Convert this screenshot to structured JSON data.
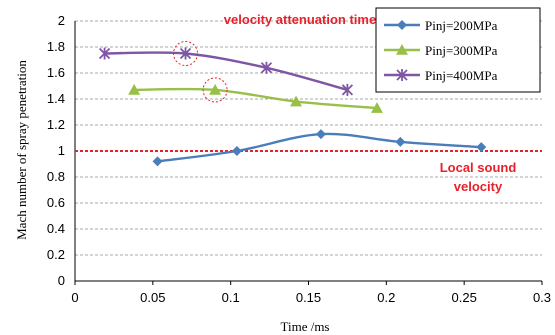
{
  "chart_data": {
    "type": "line",
    "xlabel": "Time /ms",
    "ylabel": "Mach number of spray penetration",
    "xlim": [
      0,
      0.3
    ],
    "ylim": [
      0,
      2
    ],
    "x_ticks": [
      "0",
      "0.05",
      "0.1",
      "0.15",
      "0.2",
      "0.25",
      "0.3"
    ],
    "y_ticks": [
      "0",
      "0.2",
      "0.4",
      "0.6",
      "0.8",
      "1",
      "1.2",
      "1.4",
      "1.6",
      "1.8",
      "2"
    ],
    "grid": "horizontal dashed",
    "legend_position": "top-right",
    "series": [
      {
        "name": "Pinj=200MPa",
        "color": "#4a7ebb",
        "marker": "diamond",
        "points": [
          [
            0.053,
            0.92
          ],
          [
            0.104,
            1.0
          ],
          [
            0.158,
            1.13
          ],
          [
            0.209,
            1.07
          ],
          [
            0.261,
            1.03
          ]
        ]
      },
      {
        "name": "Pinj=300MPa",
        "color": "#98c049",
        "marker": "triangle",
        "points": [
          [
            0.038,
            1.47
          ],
          [
            0.09,
            1.47
          ],
          [
            0.142,
            1.38
          ],
          [
            0.194,
            1.33
          ]
        ]
      },
      {
        "name": "Pinj=400MPa",
        "color": "#7e56a4",
        "marker": "star",
        "points": [
          [
            0.019,
            1.75
          ],
          [
            0.071,
            1.75
          ],
          [
            0.123,
            1.64
          ],
          [
            0.175,
            1.47
          ]
        ]
      }
    ],
    "reference_line": {
      "y": 1.0,
      "color": "#e8202a",
      "label_line1": "Local sound",
      "label_line2": "velocity"
    },
    "annotation": {
      "text": "velocity attenuation time",
      "color": "#e8202a",
      "circled_points": [
        [
          0.071,
          1.75
        ],
        [
          0.09,
          1.47
        ]
      ]
    }
  }
}
